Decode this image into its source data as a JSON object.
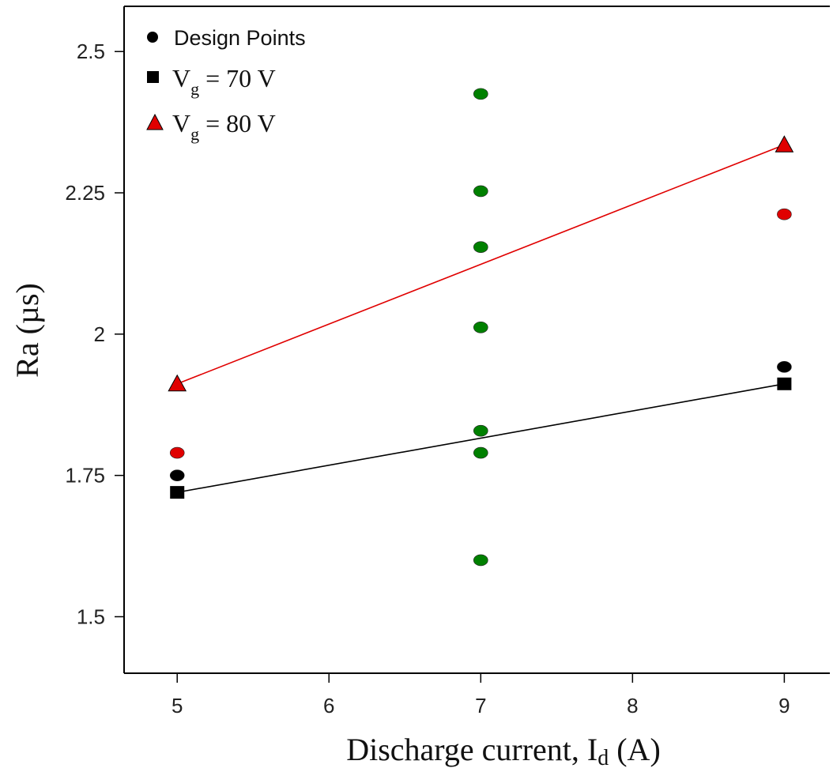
{
  "chart_data": {
    "type": "scatter",
    "title": "",
    "xlabel": "Discharge current, I",
    "xlabel_sub": "d",
    "xlabel_unit": " (A)",
    "ylabel": "Ra (µs)",
    "xlim": [
      4.65,
      9.3
    ],
    "ylim": [
      1.4,
      2.58
    ],
    "x_ticks": [
      5,
      6,
      7,
      8,
      9
    ],
    "x_tick_labels": [
      "5",
      "6",
      "7",
      "8",
      "9"
    ],
    "y_ticks": [
      1.5,
      1.75,
      2,
      2.25,
      2.5
    ],
    "y_tick_labels": [
      "1.5",
      "1.75",
      "2",
      "2.25",
      "2.5"
    ],
    "grid": false,
    "legend_position": "top-left",
    "legend": [
      {
        "marker": "circle",
        "label": "Design Points",
        "color": "#000000"
      },
      {
        "marker": "square",
        "label_main": "V",
        "label_sub": "g",
        "label_rest": " = 70 V",
        "color": "#000000"
      },
      {
        "marker": "triangle",
        "label_main": "V",
        "label_sub": "g",
        "label_rest": " = 80 V",
        "color": "#e00000"
      }
    ],
    "series": [
      {
        "kind": "design-points",
        "color": "#008000",
        "points": [
          [
            7,
            2.425
          ],
          [
            7,
            2.253
          ],
          [
            7,
            2.154
          ],
          [
            7,
            2.012
          ],
          [
            7,
            1.829
          ],
          [
            7,
            1.79
          ],
          [
            7,
            1.6
          ]
        ]
      },
      {
        "kind": "design-points",
        "color": "#e00000",
        "points": [
          [
            5,
            1.79
          ],
          [
            9,
            2.212
          ]
        ]
      },
      {
        "kind": "design-points",
        "color": "#000000",
        "points": [
          [
            5,
            1.75
          ],
          [
            9,
            1.942
          ]
        ]
      },
      {
        "kind": "fit-line",
        "marker": "square",
        "color": "#000000",
        "points": [
          [
            5,
            1.72
          ],
          [
            9,
            1.912
          ]
        ]
      },
      {
        "kind": "fit-line",
        "marker": "triangle",
        "color": "#e00000",
        "points": [
          [
            5,
            1.912
          ],
          [
            9,
            2.335
          ]
        ]
      }
    ]
  }
}
